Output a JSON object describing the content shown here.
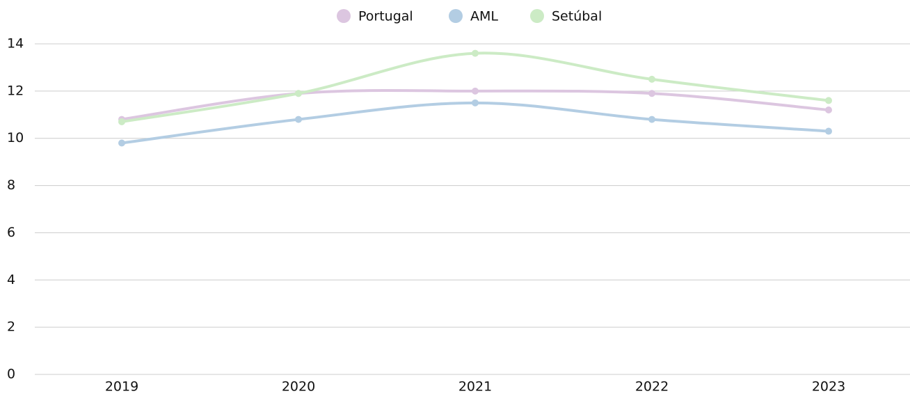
{
  "chart_data": {
    "type": "line",
    "categories": [
      "2019",
      "2020",
      "2021",
      "2022",
      "2023"
    ],
    "series": [
      {
        "name": "Portugal",
        "color": "#dcc6e0",
        "values": [
          10.8,
          11.9,
          12.0,
          11.9,
          11.2
        ]
      },
      {
        "name": "AML",
        "color": "#b3cde3",
        "values": [
          9.8,
          10.8,
          11.5,
          10.8,
          10.3
        ]
      },
      {
        "name": "Setúbal",
        "color": "#ccebc5",
        "values": [
          10.7,
          11.9,
          13.6,
          12.5,
          11.6
        ]
      }
    ],
    "ylim": [
      0,
      14
    ],
    "yticks": [
      0,
      2,
      4,
      6,
      8,
      10,
      12,
      14
    ],
    "grid": true,
    "legend": "top"
  }
}
